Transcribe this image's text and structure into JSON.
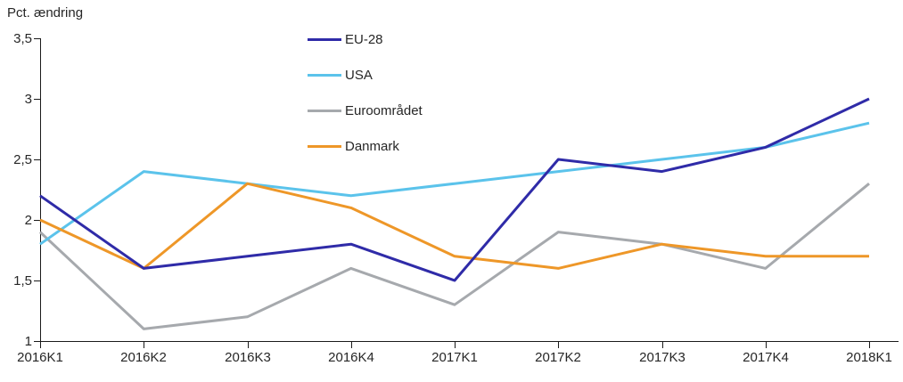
{
  "chart_data": {
    "type": "line",
    "title": "Pct. ændring",
    "xlabel": "",
    "ylabel": "Pct. ændring",
    "grid": false,
    "legend_position": "top-center-vertical",
    "axis_color": "#1a1a1a",
    "text_color": "#262626",
    "ylim": [
      1,
      3.5
    ],
    "yticks": [
      {
        "value": 1,
        "label": "1"
      },
      {
        "value": 1.5,
        "label": "1,5"
      },
      {
        "value": 2,
        "label": "2"
      },
      {
        "value": 2.5,
        "label": "2,5"
      },
      {
        "value": 3,
        "label": "3"
      },
      {
        "value": 3.5,
        "label": "3,5"
      }
    ],
    "categories": [
      "2016K1",
      "2016K2",
      "2016K3",
      "2016K4",
      "2017K1",
      "2017K2",
      "2017K3",
      "2017K4",
      "2018K1"
    ],
    "series": [
      {
        "name": "EU-28",
        "color": "#2f2ba8",
        "values": [
          2.2,
          1.6,
          1.7,
          1.8,
          1.5,
          2.5,
          2.4,
          2.6,
          3.0
        ]
      },
      {
        "name": "USA",
        "color": "#5bc3eb",
        "values": [
          1.8,
          2.4,
          2.3,
          2.2,
          2.3,
          2.4,
          2.5,
          2.6,
          2.8
        ]
      },
      {
        "name": "Euroområdet",
        "color": "#a6a9ad",
        "values": [
          1.9,
          1.1,
          1.2,
          1.6,
          1.3,
          1.9,
          1.8,
          1.6,
          2.3
        ]
      },
      {
        "name": "Danmark",
        "color": "#ee9728",
        "values": [
          2.0,
          1.6,
          2.3,
          2.1,
          1.7,
          1.6,
          1.8,
          1.7,
          1.7
        ]
      }
    ]
  }
}
